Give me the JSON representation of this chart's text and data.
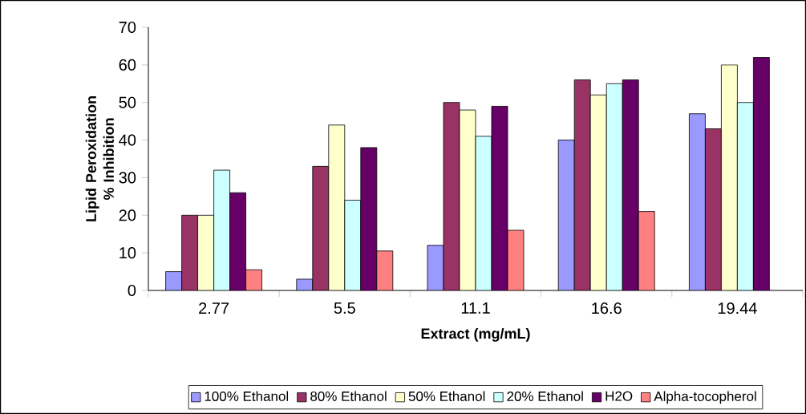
{
  "chart_data": {
    "type": "bar",
    "xlabel": "Extract (mg/mL)",
    "ylabel": "Lipid Peroxidation % Inhibition",
    "categories": [
      "2.77",
      "5.5",
      "11.1",
      "16.6",
      "19.44"
    ],
    "series": [
      {
        "name": "100% Ethanol",
        "color": "#9999ff",
        "values": [
          5,
          3,
          12,
          40,
          47
        ]
      },
      {
        "name": "80% Ethanol",
        "color": "#993366",
        "values": [
          20,
          33,
          50,
          56,
          43
        ]
      },
      {
        "name": "50% Ethanol",
        "color": "#ffffcc",
        "values": [
          20,
          44,
          48,
          52,
          60
        ]
      },
      {
        "name": "20% Ethanol",
        "color": "#ccffff",
        "values": [
          32,
          24,
          41,
          55,
          50
        ]
      },
      {
        "name": "H2O",
        "color": "#660066",
        "values": [
          26,
          38,
          49,
          56,
          62
        ]
      },
      {
        "name": "Alpha-tocopherol",
        "color": "#ff8080",
        "values": [
          5.5,
          10.5,
          16,
          21,
          null
        ]
      }
    ],
    "ylim": [
      0,
      70
    ],
    "yticks": [
      0,
      10,
      20,
      30,
      40,
      50,
      60,
      70
    ],
    "grid": false,
    "legend": "bottom"
  }
}
